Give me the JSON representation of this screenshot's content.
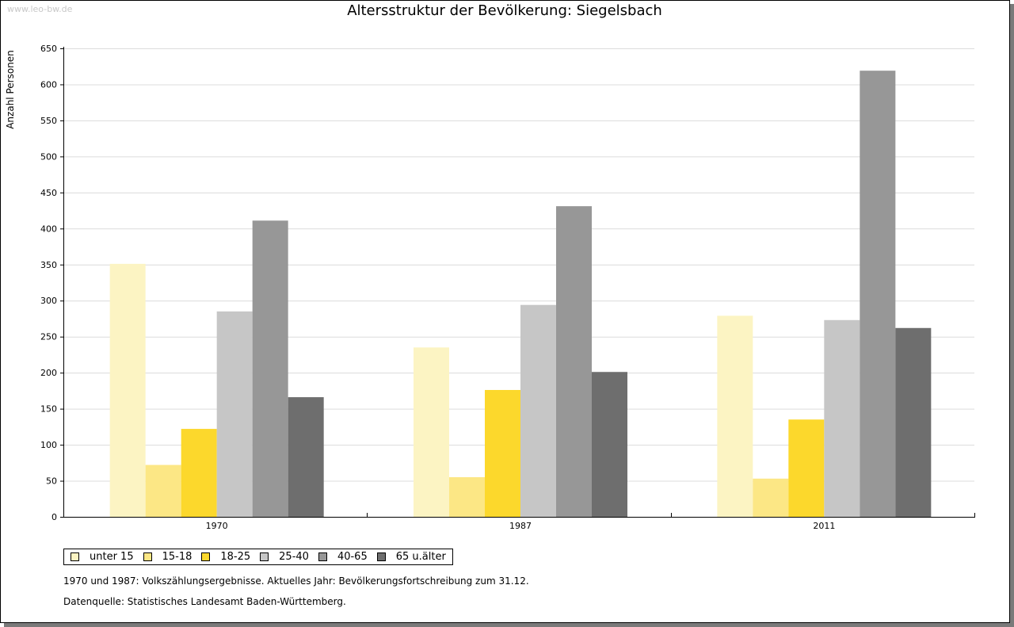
{
  "watermark": "www.leo-bw.de",
  "chart_data": {
    "type": "bar",
    "title": "Altersstruktur der Bevölkerung: Siegelsbach",
    "xlabel": "",
    "ylabel": "Anzahl Personen",
    "ylim": [
      0,
      650
    ],
    "yticks": [
      0,
      50,
      100,
      150,
      200,
      250,
      300,
      350,
      400,
      450,
      500,
      550,
      600,
      650
    ],
    "grid": true,
    "categories": [
      "1970",
      "1987",
      "2011"
    ],
    "series": [
      {
        "name": "unter 15",
        "color": "#fcf4c3",
        "values": [
          351,
          235,
          279
        ]
      },
      {
        "name": "15-18",
        "color": "#fce785",
        "values": [
          72,
          55,
          53
        ]
      },
      {
        "name": "18-25",
        "color": "#fcd82c",
        "values": [
          122,
          176,
          135
        ]
      },
      {
        "name": "25-40",
        "color": "#c6c6c6",
        "values": [
          285,
          294,
          273
        ]
      },
      {
        "name": "40-65",
        "color": "#979797",
        "values": [
          411,
          431,
          619
        ]
      },
      {
        "name": "65 u.älter",
        "color": "#6e6e6e",
        "values": [
          166,
          201,
          262
        ]
      }
    ]
  },
  "notes": {
    "line1": "1970 und 1987: Volkszählungsergebnisse. Aktuelles Jahr: Bevölkerungsfortschreibung zum 31.12.",
    "line2": "Datenquelle: Statistisches Landesamt Baden-Württemberg."
  }
}
